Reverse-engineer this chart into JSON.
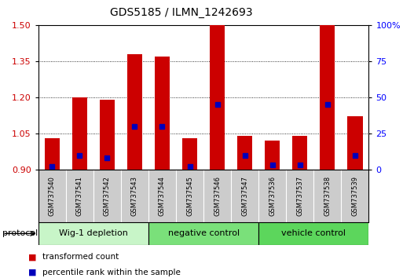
{
  "title": "GDS5185 / ILMN_1242693",
  "samples": [
    "GSM737540",
    "GSM737541",
    "GSM737542",
    "GSM737543",
    "GSM737544",
    "GSM737545",
    "GSM737546",
    "GSM737547",
    "GSM737536",
    "GSM737537",
    "GSM737538",
    "GSM737539"
  ],
  "red_values": [
    1.03,
    1.2,
    1.19,
    1.38,
    1.37,
    1.03,
    1.5,
    1.04,
    1.02,
    1.04,
    1.5,
    1.12
  ],
  "blue_percentile": [
    2,
    10,
    8,
    30,
    30,
    2,
    45,
    10,
    3,
    3,
    45,
    10
  ],
  "groups": [
    {
      "label": "Wig-1 depletion",
      "start": 0,
      "end": 4,
      "color": "#c8f5c8"
    },
    {
      "label": "negative control",
      "start": 4,
      "end": 8,
      "color": "#7ae07a"
    },
    {
      "label": "vehicle control",
      "start": 8,
      "end": 12,
      "color": "#5cd65c"
    }
  ],
  "ylim_left": [
    0.9,
    1.5
  ],
  "ylim_right": [
    0,
    100
  ],
  "yticks_left": [
    0.9,
    1.05,
    1.2,
    1.35,
    1.5
  ],
  "yticks_right": [
    0,
    25,
    50,
    75,
    100
  ],
  "ytick_labels_right": [
    "0",
    "25",
    "50",
    "75",
    "100%"
  ],
  "bar_color": "#cc0000",
  "blue_color": "#0000bb",
  "background_color": "#ffffff",
  "bar_width": 0.55,
  "base_value": 0.9
}
